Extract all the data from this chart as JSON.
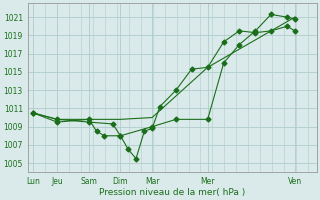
{
  "bg_color": "#daeaea",
  "grid_color": "#b0cccc",
  "line_color": "#1a6e1a",
  "title": "Pression niveau de la mer( hPa )",
  "ylim": [
    1004.0,
    1022.5
  ],
  "yticks": [
    1005,
    1007,
    1009,
    1011,
    1013,
    1015,
    1017,
    1019,
    1021
  ],
  "x_labels": [
    "Lun",
    "Jeu",
    "Sam",
    "Dim",
    "Mar",
    "Mer",
    "Ven"
  ],
  "x_positions": [
    0,
    0.43,
    1.0,
    1.57,
    2.14,
    3.14,
    4.71
  ],
  "xlim": [
    -0.1,
    5.1
  ],
  "line1_x": [
    0,
    0.43,
    1.0,
    1.14,
    1.28,
    1.57,
    1.71,
    1.85,
    2.0,
    2.14,
    2.28,
    2.57,
    2.85,
    3.14,
    3.43,
    3.71,
    4.0,
    4.28,
    4.57,
    4.71
  ],
  "line1_y": [
    1010.5,
    1009.5,
    1009.8,
    1008.5,
    1008.0,
    1008.0,
    1006.5,
    1005.5,
    1008.5,
    1008.8,
    1011.2,
    1013.0,
    1015.3,
    1015.5,
    1018.3,
    1019.5,
    1019.3,
    1019.5,
    1020.0,
    1019.5
  ],
  "line2_x": [
    0,
    0.43,
    1.0,
    1.57,
    2.14,
    3.14,
    4.71
  ],
  "line2_y": [
    1010.5,
    1009.8,
    1009.8,
    1009.8,
    1010.0,
    1015.5,
    1021.0
  ],
  "line3_x": [
    0,
    0.43,
    1.0,
    1.43,
    1.57,
    2.14,
    2.57,
    3.14,
    3.43,
    3.71,
    4.0,
    4.28,
    4.57,
    4.71
  ],
  "line3_y": [
    1010.5,
    1009.8,
    1009.5,
    1009.3,
    1008.0,
    1009.0,
    1009.8,
    1009.8,
    1016.0,
    1018.0,
    1019.5,
    1021.3,
    1021.0,
    1020.8
  ]
}
